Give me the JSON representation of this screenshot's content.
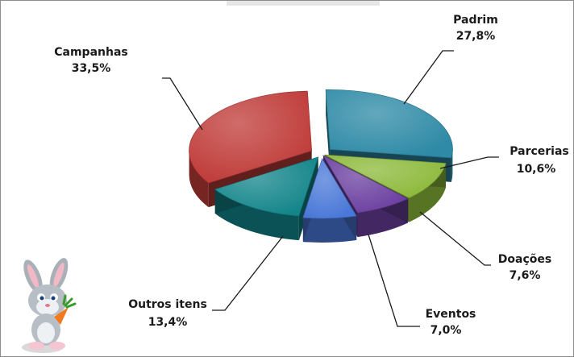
{
  "chart_data": {
    "type": "pie",
    "title": "",
    "slices": [
      {
        "label": "Padrim",
        "value": 27.8,
        "value_text": "27,8%",
        "color": "#2e8aa6"
      },
      {
        "label": "Parcerias",
        "value": 10.6,
        "value_text": "10,6%",
        "color": "#8cb93a"
      },
      {
        "label": "Doações",
        "value": 7.6,
        "value_text": "7,6%",
        "color": "#6b3fa0"
      },
      {
        "label": "Eventos",
        "value": 7.0,
        "value_text": "7,0%",
        "color": "#4a78d8"
      },
      {
        "label": "Outros itens",
        "value": 13.4,
        "value_text": "13,4%",
        "color": "#12858a"
      },
      {
        "label": "Campanhas",
        "value": 33.5,
        "value_text": "33,5%",
        "color": "#bf3b38"
      }
    ],
    "style": "3d-exploded-pie"
  },
  "decoration": {
    "mascot": "bunny-with-carrot"
  }
}
